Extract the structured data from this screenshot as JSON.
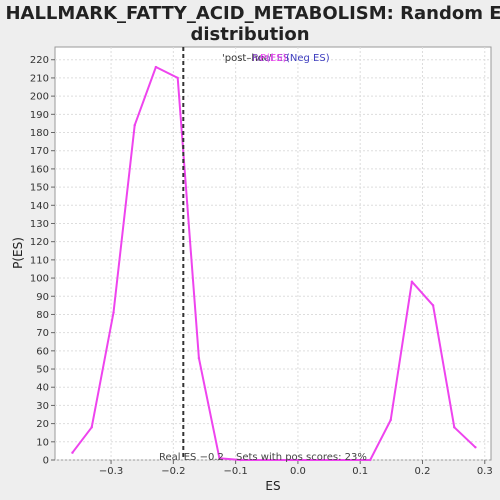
{
  "chart_data": {
    "type": "line",
    "title": "HALLMARK_FATTY_ACID_METABOLISM: Random ES distribution",
    "title_lines": [
      "HALLMARK_FATTY_ACID_METABOLISM: Random ES",
      "distribution"
    ],
    "xlabel": "ES",
    "ylabel": "P(ES)",
    "xlim": [
      -0.39,
      0.31
    ],
    "ylim": [
      0,
      227
    ],
    "x_ticks": [
      -0.3,
      -0.2,
      -0.1,
      0.0,
      0.1,
      0.2,
      0.3
    ],
    "x_tick_labels": [
      "−0.3",
      "−0.2",
      "−0.1",
      "0.0",
      "0.1",
      "0.2",
      "0.3"
    ],
    "y_ticks": [
      0,
      10,
      20,
      30,
      40,
      50,
      60,
      70,
      80,
      90,
      100,
      110,
      120,
      130,
      140,
      150,
      160,
      170,
      180,
      190,
      200,
      210,
      220
    ],
    "grid": true,
    "series": [
      {
        "color": "#ee44ee",
        "x": [
          -0.362,
          -0.331,
          -0.296,
          -0.262,
          -0.228,
          -0.193,
          -0.159,
          -0.126,
          -0.092,
          0.116,
          0.149,
          0.183,
          0.217,
          0.251,
          0.285
        ],
        "y": [
          4,
          18,
          81,
          184,
          216,
          210,
          56,
          1,
          0,
          0,
          22,
          98,
          85,
          18,
          7
        ]
      }
    ],
    "real_es_line": {
      "x": -0.184,
      "color": "#333333"
    },
    "annotations": {
      "real_es": "Real ES −0.2",
      "pos_scores": "Sets with pos scores: 23%"
    },
    "legend": {
      "position": "top-center",
      "overlapping_labels": [
        {
          "text": "'post–hoc'",
          "color": "#333333"
        },
        {
          "text": "Real ES",
          "color": "#7f3fbf"
        },
        {
          "text": "P(ES)",
          "color": "#ee44ee"
        },
        {
          "text": "(Neg ES)",
          "color": "#3f3fbf"
        }
      ]
    }
  }
}
